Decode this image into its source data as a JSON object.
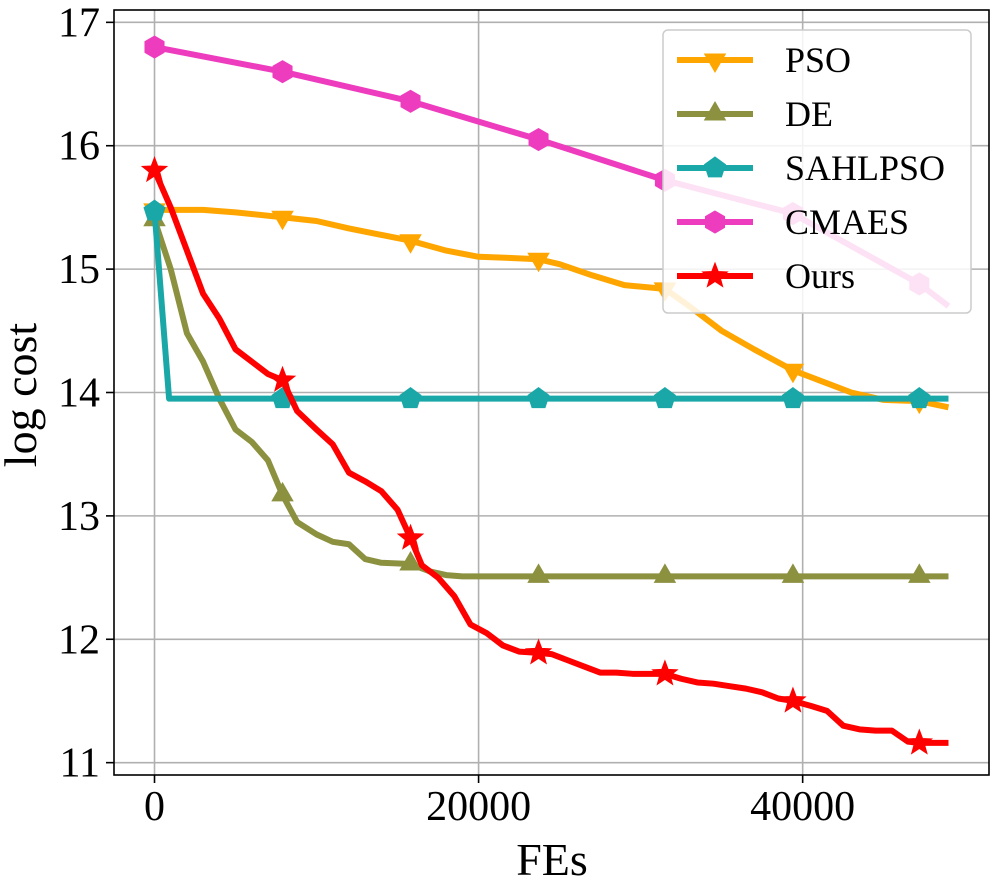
{
  "chart_data": {
    "type": "line",
    "title": "",
    "xlabel": "FEs",
    "ylabel": "log cost",
    "xlim": [
      -2500,
      51500
    ],
    "ylim": [
      10.9,
      17.1
    ],
    "xticks": [
      0,
      20000,
      40000
    ],
    "xtick_labels": [
      "0",
      "20000",
      "40000"
    ],
    "yticks": [
      11,
      12,
      13,
      14,
      15,
      16,
      17
    ],
    "ytick_labels": [
      "11",
      "12",
      "13",
      "14",
      "15",
      "16",
      "17"
    ],
    "grid": true,
    "legend_position": "top-right",
    "series": [
      {
        "name": "PSO",
        "color": "#ffa500",
        "marker": "triangle-down",
        "x": [
          0,
          3000,
          5000,
          7900,
          10000,
          12000,
          15800,
          18000,
          20000,
          22000,
          23700,
          25000,
          27000,
          29000,
          31500,
          33000,
          35000,
          37000,
          39400,
          41000,
          43000,
          45000,
          47200,
          49000
        ],
        "y": [
          15.48,
          15.48,
          15.46,
          15.42,
          15.39,
          15.33,
          15.23,
          15.15,
          15.1,
          15.09,
          15.08,
          15.04,
          14.95,
          14.87,
          14.84,
          14.7,
          14.5,
          14.35,
          14.18,
          14.1,
          14.0,
          13.94,
          13.93,
          13.88
        ],
        "marker_indices": [
          0,
          3,
          6,
          10,
          14,
          18,
          22
        ]
      },
      {
        "name": "DE",
        "color": "#8c9140",
        "marker": "triangle-up",
        "x": [
          0,
          1000,
          2000,
          3000,
          4000,
          5000,
          6000,
          7000,
          7900,
          8800,
          10000,
          11000,
          12000,
          13000,
          14000,
          15800,
          17000,
          18000,
          19000,
          23700,
          31500,
          39400,
          47200,
          49000
        ],
        "y": [
          15.4,
          15.0,
          14.48,
          14.25,
          13.95,
          13.7,
          13.6,
          13.45,
          13.17,
          12.95,
          12.85,
          12.79,
          12.77,
          12.65,
          12.62,
          12.61,
          12.55,
          12.52,
          12.51,
          12.51,
          12.51,
          12.51,
          12.51,
          12.51
        ],
        "marker_indices": [
          0,
          8,
          15,
          19,
          20,
          21,
          22
        ]
      },
      {
        "name": "SAHLPSO",
        "color": "#1aa7a7",
        "marker": "pentagon",
        "x": [
          0,
          900,
          7900,
          15800,
          23700,
          31500,
          39400,
          47200,
          49000
        ],
        "y": [
          15.47,
          13.95,
          13.95,
          13.95,
          13.95,
          13.95,
          13.95,
          13.95,
          13.95
        ],
        "marker_indices": [
          0,
          2,
          3,
          4,
          5,
          6,
          7
        ]
      },
      {
        "name": "CMAES",
        "color": "#ee3cbe",
        "marker": "hexagon",
        "x": [
          0,
          7900,
          15800,
          23700,
          31500,
          39400,
          47200,
          49000
        ],
        "y": [
          16.8,
          16.6,
          16.36,
          16.05,
          15.72,
          15.45,
          14.88,
          14.7
        ],
        "marker_indices": [
          0,
          1,
          2,
          3,
          4,
          5,
          6
        ]
      },
      {
        "name": "Ours",
        "color": "#ff0000",
        "marker": "star",
        "x": [
          0,
          1000,
          2000,
          3000,
          4000,
          5000,
          6000,
          7000,
          7900,
          8800,
          10000,
          11000,
          12000,
          13000,
          14000,
          15000,
          15800,
          16500,
          17500,
          18500,
          19500,
          20500,
          21500,
          22500,
          23700,
          24500,
          25500,
          26500,
          27500,
          28500,
          29500,
          30500,
          31500,
          32500,
          33500,
          34500,
          35500,
          36500,
          37500,
          38500,
          39400,
          40500,
          41500,
          42500,
          43500,
          44500,
          45500,
          46500,
          47200,
          48000,
          49000
        ],
        "y": [
          15.8,
          15.5,
          15.15,
          14.8,
          14.6,
          14.35,
          14.25,
          14.15,
          14.1,
          13.85,
          13.7,
          13.58,
          13.35,
          13.28,
          13.2,
          13.05,
          12.82,
          12.6,
          12.5,
          12.35,
          12.12,
          12.05,
          11.95,
          11.9,
          11.89,
          11.88,
          11.83,
          11.78,
          11.73,
          11.73,
          11.72,
          11.72,
          11.72,
          11.68,
          11.65,
          11.64,
          11.62,
          11.6,
          11.57,
          11.52,
          11.5,
          11.46,
          11.42,
          11.3,
          11.27,
          11.26,
          11.26,
          11.17,
          11.16,
          11.16,
          11.16
        ],
        "marker_indices": [
          0,
          8,
          16,
          24,
          32,
          40,
          48
        ]
      }
    ]
  }
}
